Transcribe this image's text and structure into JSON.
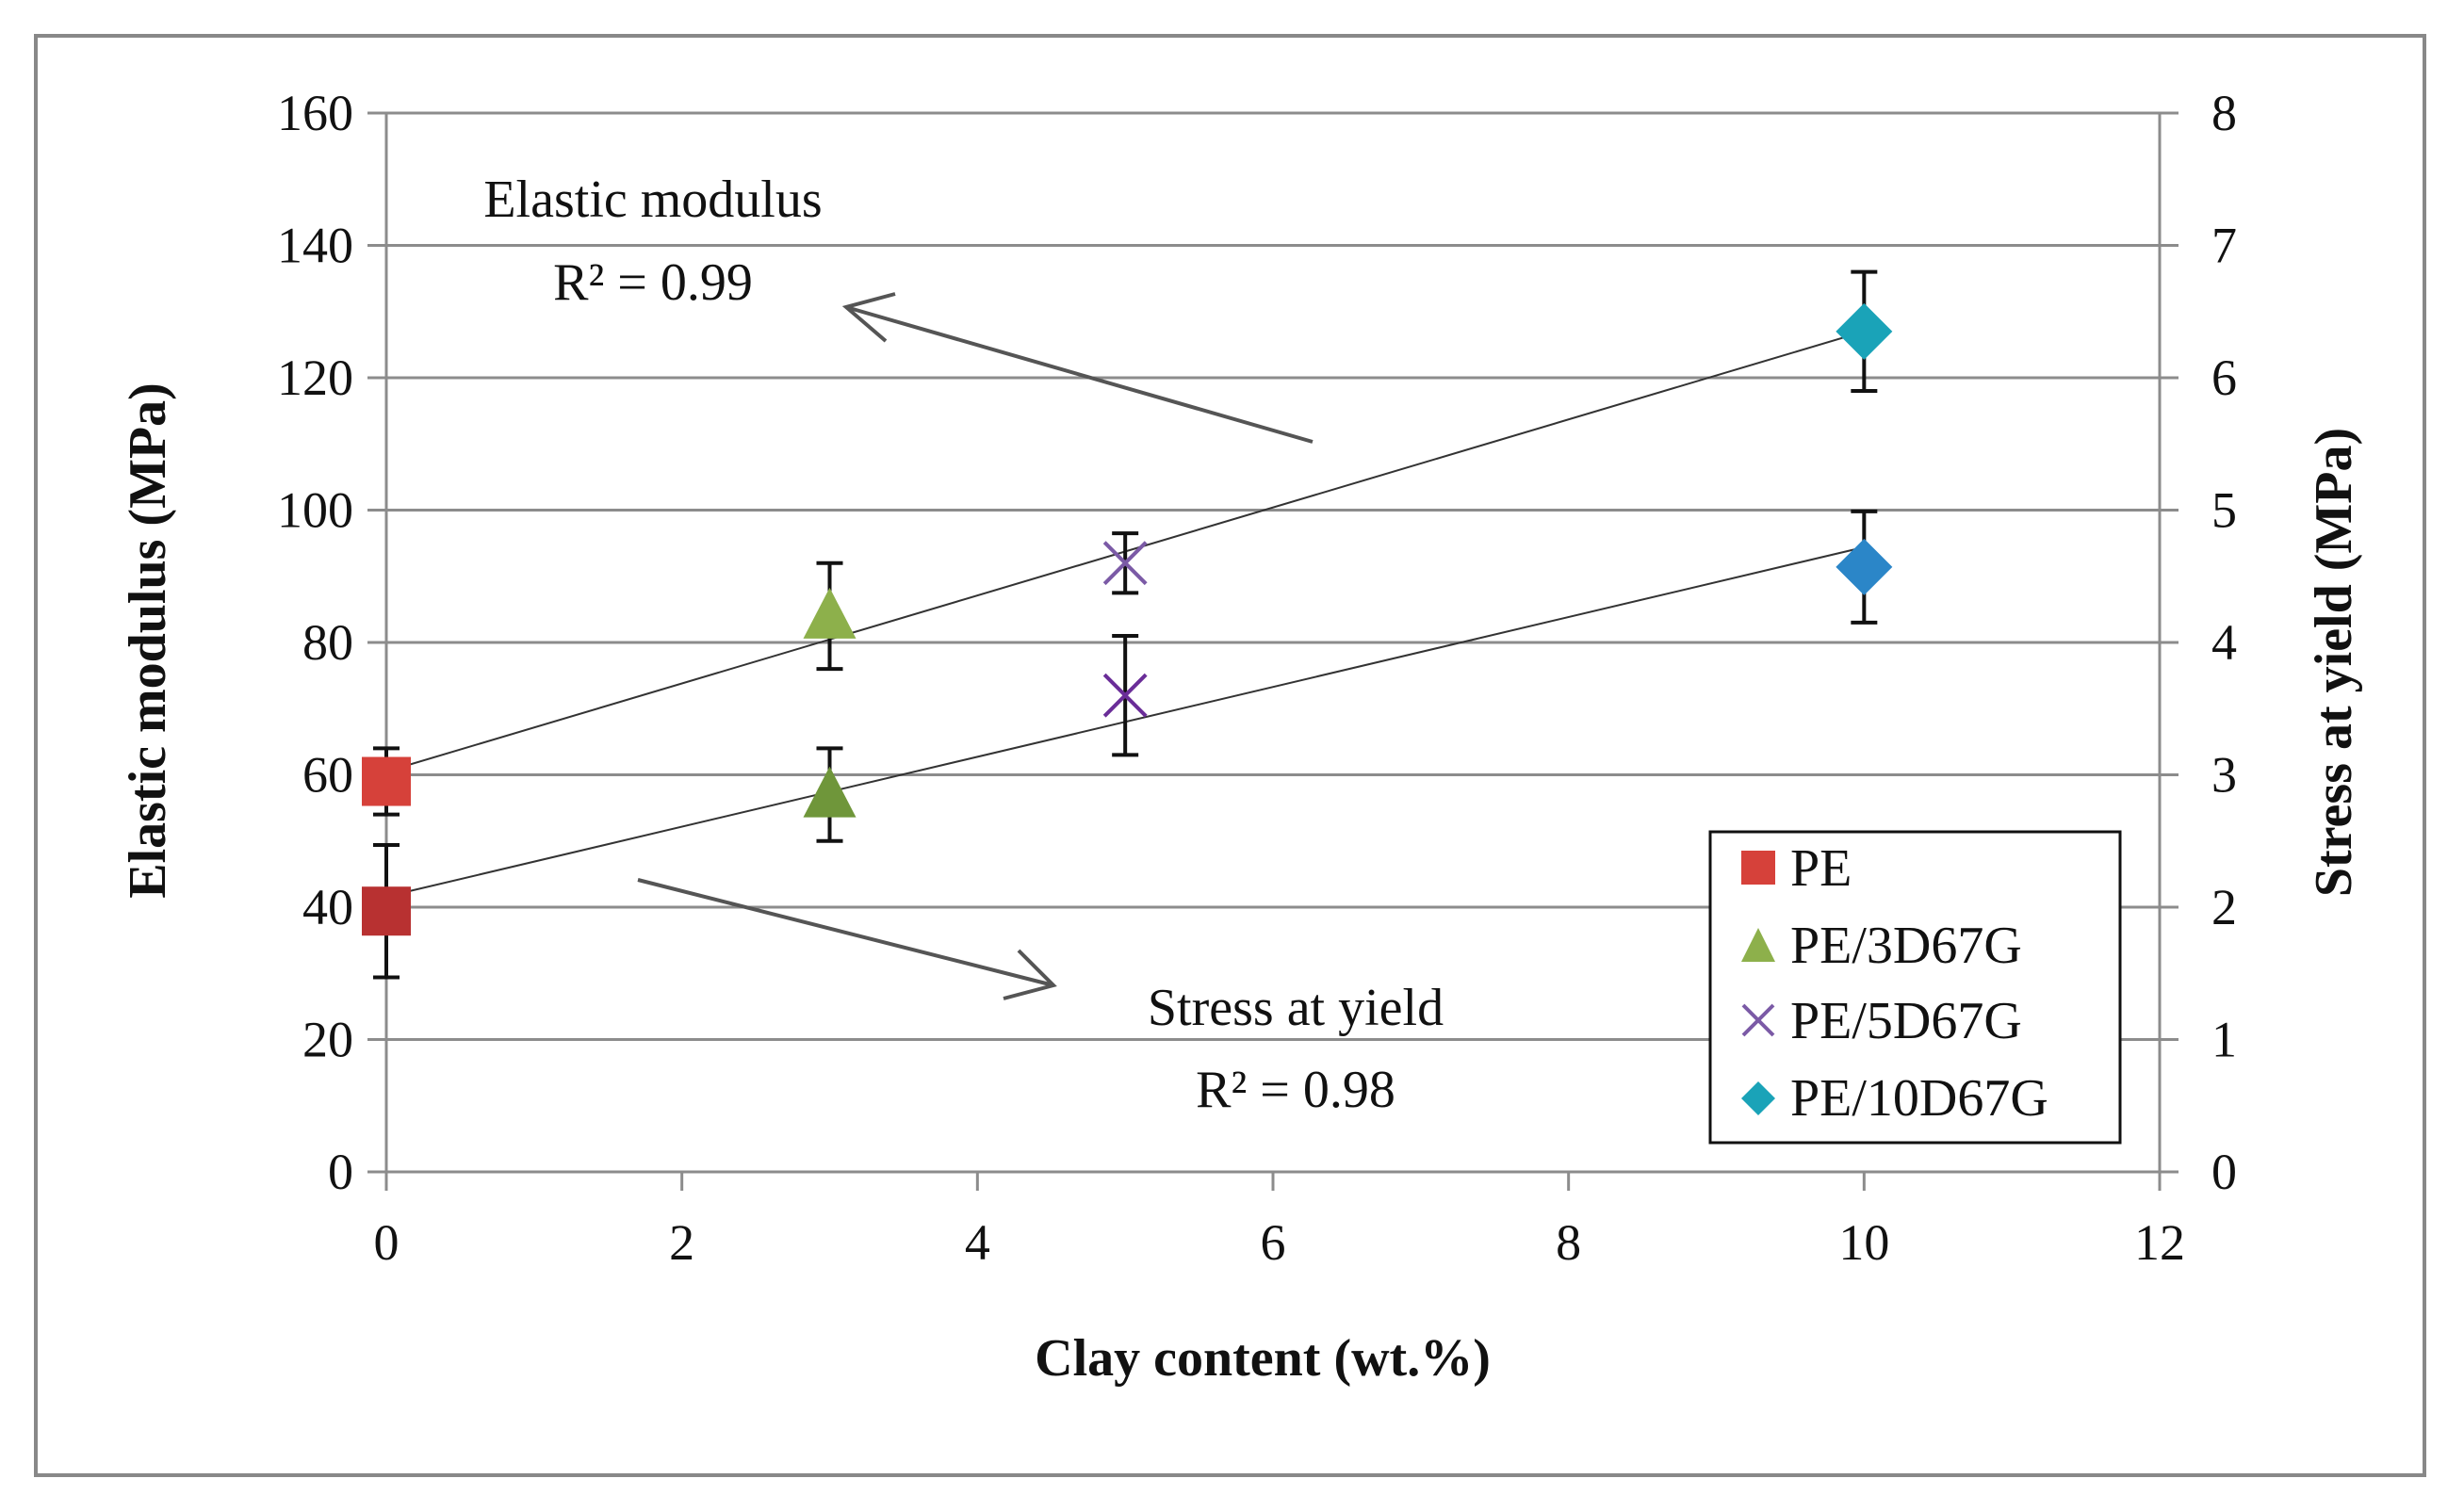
{
  "chart_data": {
    "type": "scatter",
    "xlabel": "Clay content (wt.%)",
    "ylabel_left": "Elastic modulus (MPa)",
    "ylabel_right": "Stress at yield (MPa)",
    "xlim": [
      0,
      12
    ],
    "ylim_left": [
      0,
      160
    ],
    "ylim_right": [
      0,
      8
    ],
    "x_ticks": [
      "0",
      "2",
      "4",
      "6",
      "8",
      "10",
      "12"
    ],
    "y_left_ticks": [
      "0",
      "20",
      "40",
      "60",
      "80",
      "100",
      "120",
      "140",
      "160"
    ],
    "y_right_ticks": [
      "0",
      "1",
      "2",
      "3",
      "4",
      "5",
      "6",
      "7",
      "8"
    ],
    "grid": "horizontal",
    "legend_position": "bottom-right",
    "series": [
      {
        "name": "PE",
        "marker": "square",
        "colors": {
          "elastic": "#d6413a",
          "stress": "#b83131"
        },
        "x": 0,
        "elastic_modulus": 59,
        "elastic_modulus_err": 5,
        "stress_at_yield": 1.97,
        "stress_at_yield_err": 0.5
      },
      {
        "name": "PE/3D67G",
        "marker": "triangle",
        "colors": {
          "elastic": "#8db04b",
          "stress": "#6f963a"
        },
        "x": 3,
        "elastic_modulus": 84,
        "elastic_modulus_err": 8,
        "stress_at_yield": 2.85,
        "stress_at_yield_err": 0.35
      },
      {
        "name": "PE/5D67G",
        "marker": "x",
        "colors": {
          "elastic": "#7b5aa6",
          "stress": "#6a2d98"
        },
        "x": 5,
        "elastic_modulus": 92,
        "elastic_modulus_err": 4.5,
        "stress_at_yield": 3.6,
        "stress_at_yield_err": 0.45
      },
      {
        "name": "PE/10D67G",
        "marker": "diamond",
        "colors": {
          "elastic": "#1aa3b8",
          "stress": "#2b86c8"
        },
        "x": 10,
        "elastic_modulus": 127,
        "elastic_modulus_err": 9,
        "stress_at_yield": 4.57,
        "stress_at_yield_err": 0.42
      }
    ],
    "trendlines": [
      {
        "name": "elastic-trend",
        "axis": "left",
        "x": [
          0,
          10
        ],
        "y": [
          60.5,
          127
        ]
      },
      {
        "name": "stress-trend",
        "axis": "right",
        "x": [
          0,
          10
        ],
        "y": [
          2.08,
          4.72
        ]
      }
    ],
    "annotations": [
      {
        "name": "elastic-annotation",
        "label": "Elastic modulus",
        "r2": "R² = 0.99",
        "arrow_to": "left-axis"
      },
      {
        "name": "stress-annotation",
        "label": "Stress at yield",
        "r2": "R² = 0.98",
        "arrow_to": "right-axis"
      }
    ]
  }
}
